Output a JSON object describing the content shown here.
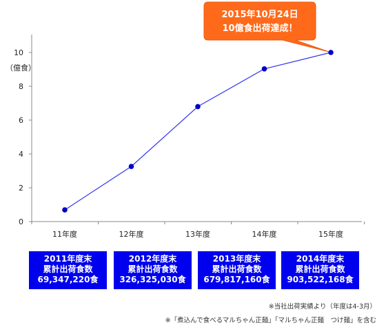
{
  "chart_data": {
    "type": "line",
    "categories": [
      "11年度",
      "12年度",
      "13年度",
      "14年度",
      "15年度"
    ],
    "values": [
      0.69,
      3.26,
      6.8,
      9.03,
      10.0
    ],
    "title": "",
    "xlabel": "",
    "ylabel": "（億食）",
    "ylim": [
      0,
      10
    ],
    "yticks": [
      0,
      2,
      4,
      6,
      8,
      10
    ],
    "grid": false,
    "series_color": "#3333ee",
    "marker_color": "#0000cc",
    "annotation": {
      "line1": "2015年10月24日",
      "line2": "10億食出荷達成！",
      "color": "#ff6a1a",
      "points_to_category": "15年度"
    }
  },
  "info_boxes": [
    {
      "line1": "2011年度末",
      "line2": "累計出荷食数",
      "line3": "69,347,220食"
    },
    {
      "line1": "2012年度末",
      "line2": "累計出荷食数",
      "line3": "326,325,030食"
    },
    {
      "line1": "2013年度末",
      "line2": "累計出荷食数",
      "line3": "679,817,160食"
    },
    {
      "line1": "2014年度末",
      "line2": "累計出荷食数",
      "line3": "903,522,168食"
    }
  ],
  "info_box_color": "#0000ee",
  "notes": [
    "※当社出荷実績より（年度は4-3月）",
    "※「煮込んで食べるマルちゃん正麺」「マルちゃん正麺　つけ麺」を含む"
  ]
}
